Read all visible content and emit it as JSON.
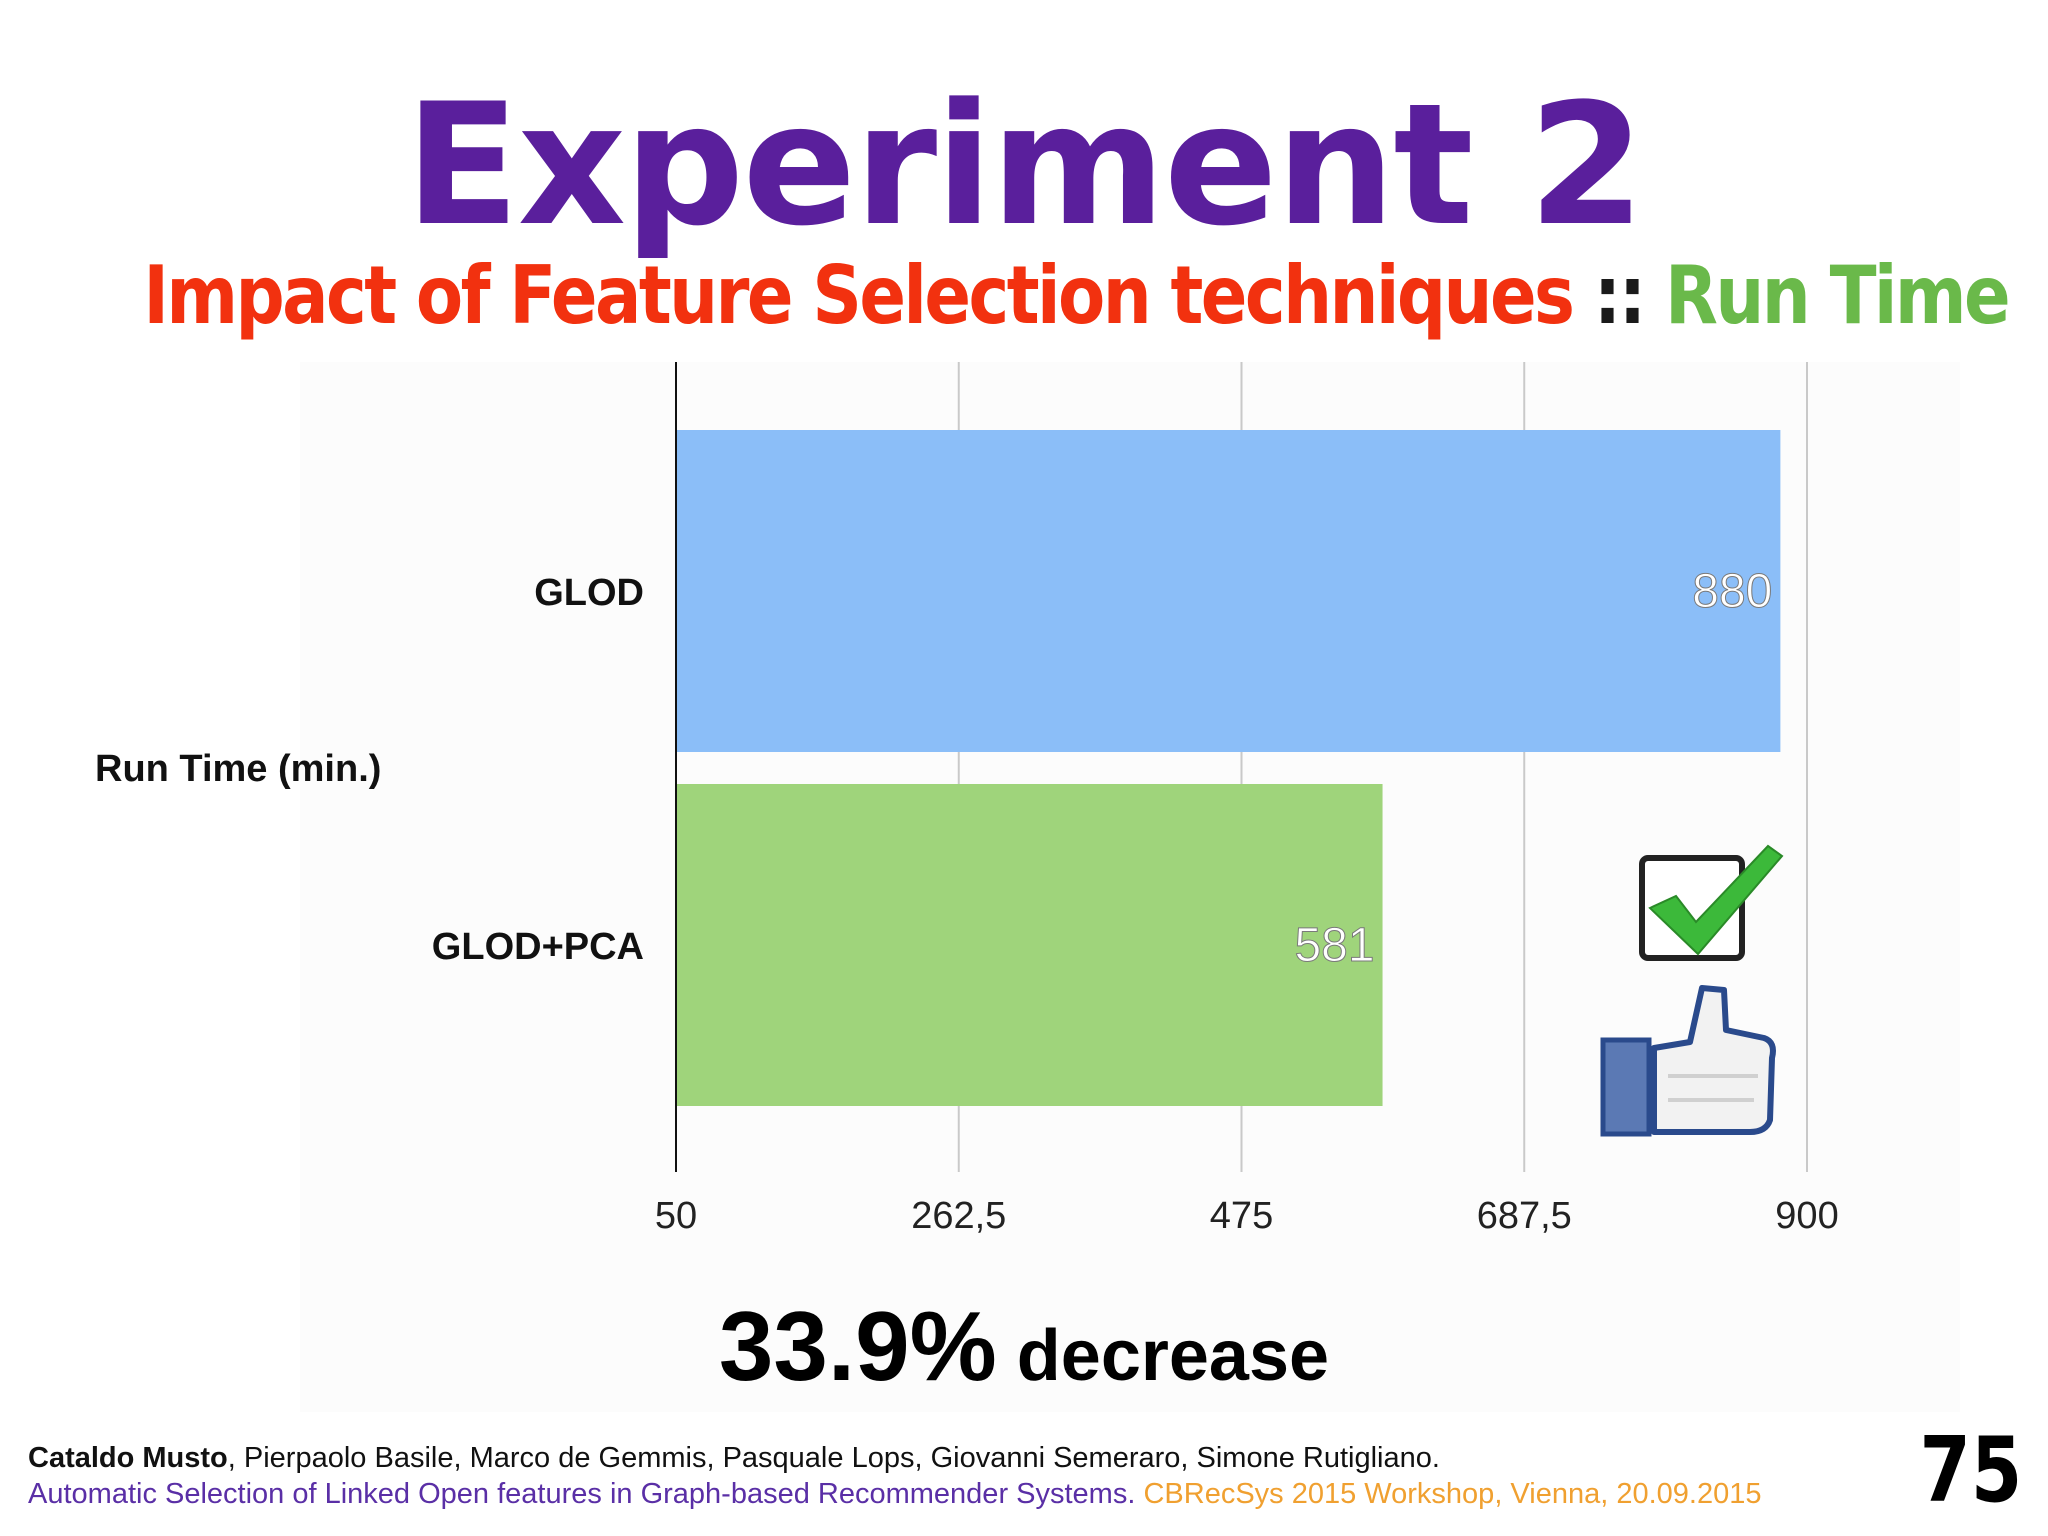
{
  "slide": {
    "title": "Experiment 2",
    "subtitle_part1": "Impact of Feature Selection techniques",
    "subtitle_sep": " :: ",
    "subtitle_part2": "Run Time",
    "callout_number": "33.9%",
    "callout_text": " decrease",
    "page_number": "75",
    "icons": [
      "checkbox-check-icon",
      "thumbs-up-icon"
    ],
    "colors": {
      "title": "#5a1f9c",
      "subtitle_red": "#f2310f",
      "subtitle_green": "#6ab94a",
      "bar_glod": "#8bbef8",
      "bar_glod_pca": "#9fd47b"
    }
  },
  "footer": {
    "lead_author": "Cataldo Musto",
    "coauthors": ", Pierpaolo Basile, Marco de Gemmis, Pasquale Lops, Giovanni Semeraro, Simone Rutigliano.",
    "paper_title": "Automatic Selection of Linked Open features in Graph-based Recommender Systems",
    "paper_sep": ". ",
    "venue": "CBRecSys 2015 Workshop, Vienna, 20.09.2015"
  },
  "chart_data": {
    "type": "bar",
    "orientation": "horizontal",
    "ylabel": "Run Time (min.)",
    "categories": [
      "GLOD",
      "GLOD+PCA"
    ],
    "values": [
      880,
      581
    ],
    "data_labels": [
      "880",
      "581"
    ],
    "colors": [
      "#8bbef8",
      "#9fd47b"
    ],
    "xlim": [
      50,
      900
    ],
    "xticks": [
      50,
      262.5,
      475,
      687.5,
      900
    ],
    "xtick_labels": [
      "50",
      "262,5",
      "475",
      "687,5",
      "900"
    ],
    "grid": true,
    "legend": "none"
  }
}
